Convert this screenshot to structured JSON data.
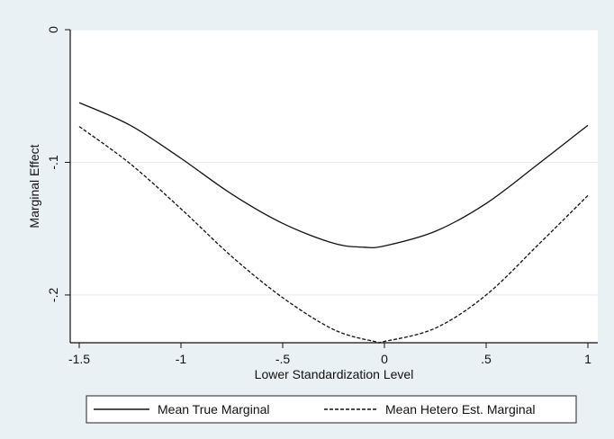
{
  "chart_data": {
    "type": "line",
    "title": "",
    "xlabel": "Lower Standardization Level",
    "ylabel": "Marginal Effect",
    "xlim": [
      -1.5,
      1
    ],
    "ylim": [
      -0.236,
      0
    ],
    "x_ticks": [
      -1.5,
      -1,
      -0.5,
      0,
      0.5,
      1
    ],
    "x_tick_labels": [
      "-1.5",
      "-1",
      "-.5",
      "0",
      ".5",
      "1"
    ],
    "y_ticks": [
      0,
      -0.1,
      -0.2
    ],
    "y_tick_labels": [
      "0",
      "-.1",
      "-.2"
    ],
    "grid": "horizontal",
    "legend": "bottom",
    "series": [
      {
        "name": "Mean True Marginal",
        "style": "solid",
        "x": [
          -1.5,
          -1.25,
          -1.0,
          -0.75,
          -0.5,
          -0.25,
          -0.1,
          0.0,
          0.25,
          0.5,
          0.75,
          1.0
        ],
        "values": [
          -0.055,
          -0.072,
          -0.097,
          -0.124,
          -0.146,
          -0.161,
          -0.164,
          -0.163,
          -0.152,
          -0.131,
          -0.102,
          -0.072
        ]
      },
      {
        "name": "Mean Hetero Est. Marginal",
        "style": "dashed",
        "x": [
          -1.5,
          -1.25,
          -1.0,
          -0.75,
          -0.5,
          -0.25,
          -0.05,
          0.0,
          0.25,
          0.5,
          0.75,
          1.0
        ],
        "values": [
          -0.073,
          -0.101,
          -0.135,
          -0.171,
          -0.202,
          -0.226,
          -0.235,
          -0.235,
          -0.225,
          -0.2,
          -0.163,
          -0.125
        ]
      }
    ]
  }
}
